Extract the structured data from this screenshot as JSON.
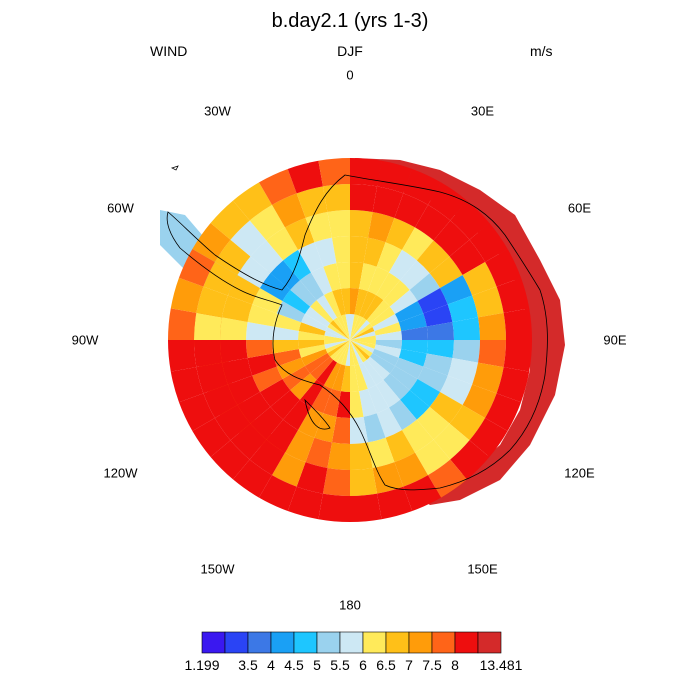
{
  "header": {
    "title": "b.day2.1 (yrs 1-3)",
    "variable": "WIND",
    "season": "DJF",
    "units": "m/s"
  },
  "longitude_labels": [
    {
      "text": "0",
      "deg": 0
    },
    {
      "text": "30E",
      "deg": 30
    },
    {
      "text": "60E",
      "deg": 60
    },
    {
      "text": "90E",
      "deg": 90
    },
    {
      "text": "120E",
      "deg": 120
    },
    {
      "text": "150E",
      "deg": 150
    },
    {
      "text": "180",
      "deg": 180
    },
    {
      "text": "150W",
      "deg": -150
    },
    {
      "text": "120W",
      "deg": -120
    },
    {
      "text": "90W",
      "deg": -90
    },
    {
      "text": "60W",
      "deg": -60
    },
    {
      "text": "30W",
      "deg": -30
    }
  ],
  "colorbar": {
    "colors": [
      "#3a18f0",
      "#2a44f5",
      "#3c78e6",
      "#1aa0f5",
      "#1ec6ff",
      "#9ad2ee",
      "#cde8f4",
      "#ffea5a",
      "#ffc018",
      "#ff9c0a",
      "#ff6418",
      "#ee0e0e",
      "#d42a2a"
    ],
    "labels": [
      "1.199",
      "3.5",
      "4",
      "4.5",
      "5",
      "5.5",
      "6",
      "6.5",
      "7",
      "7.5",
      "8",
      "13.481"
    ]
  },
  "chart_data": {
    "type": "heatmap",
    "projection": "south polar stereographic",
    "title": "b.day2.1 (yrs 1-3)",
    "variable": "WIND",
    "season": "DJF",
    "units": "m/s",
    "min": 1.199,
    "max": 13.481,
    "levels": [
      3.5,
      4,
      4.5,
      5,
      5.5,
      6,
      6.5,
      7,
      7.5,
      8
    ],
    "value_rings": [
      {
        "ring": 1,
        "values": [
          6.2,
          6.0,
          6.3,
          6.1,
          6.4,
          6.0,
          6.2,
          6.5,
          6.1,
          6.0,
          6.3,
          6.2
        ]
      },
      {
        "ring": 2,
        "values": [
          6.8,
          6.5,
          5.8,
          5.4,
          5.6,
          6.0,
          7.2,
          7.8,
          6.8,
          6.2,
          5.9,
          6.6
        ]
      },
      {
        "ring": 3,
        "values": [
          6.6,
          6.0,
          4.2,
          4.8,
          5.3,
          5.9,
          7.9,
          7.8,
          7.2,
          5.8,
          5.0,
          6.2
        ]
      },
      {
        "ring": 4,
        "values": [
          6.4,
          5.6,
          3.2,
          5.1,
          5.0,
          5.6,
          7.6,
          8.3,
          7.9,
          6.1,
          4.4,
          5.9
        ]
      },
      {
        "ring": 5,
        "values": [
          6.9,
          6.5,
          4.6,
          5.7,
          6.3,
          6.7,
          7.3,
          8.5,
          8.2,
          6.5,
          6.0,
          6.4
        ]
      },
      {
        "ring": 6,
        "values": [
          8.9,
          8.3,
          6.9,
          7.4,
          6.6,
          7.1,
          7.8,
          8.9,
          8.6,
          6.8,
          6.2,
          6.9
        ]
      },
      {
        "ring": 7,
        "values": [
          10.5,
          10.2,
          9.5,
          9.1,
          8.2,
          8.4,
          8.9,
          9.4,
          9.0,
          7.6,
          7.0,
          7.8
        ]
      }
    ]
  }
}
